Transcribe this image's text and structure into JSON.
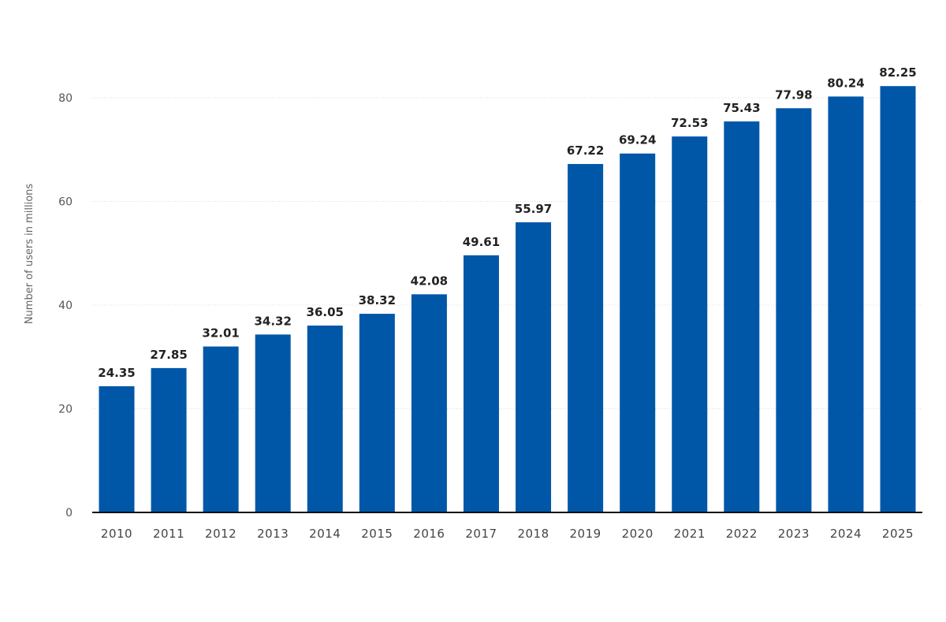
{
  "chart_data": {
    "type": "bar",
    "title": "",
    "xlabel": "",
    "ylabel": "Number of users in millions",
    "ylim": [
      0,
      80
    ],
    "yticks": [
      0,
      20,
      40,
      60,
      80
    ],
    "grid": true,
    "bar_color": "#0057a8",
    "categories": [
      "2010",
      "2011",
      "2012",
      "2013",
      "2014",
      "2015",
      "2016",
      "2017",
      "2018",
      "2019",
      "2020",
      "2021",
      "2022",
      "2023",
      "2024",
      "2025"
    ],
    "values": [
      24.35,
      27.85,
      32.01,
      34.32,
      36.05,
      38.32,
      42.08,
      49.61,
      55.97,
      67.22,
      69.24,
      72.53,
      75.43,
      77.98,
      80.24,
      82.25
    ],
    "data_labels": [
      "24.35",
      "27.85",
      "32.01",
      "34.32",
      "36.05",
      "38.32",
      "42.08",
      "49.61",
      "55.97",
      "67.22",
      "69.24",
      "72.53",
      "75.43",
      "77.98",
      "80.24",
      "82.25"
    ]
  }
}
